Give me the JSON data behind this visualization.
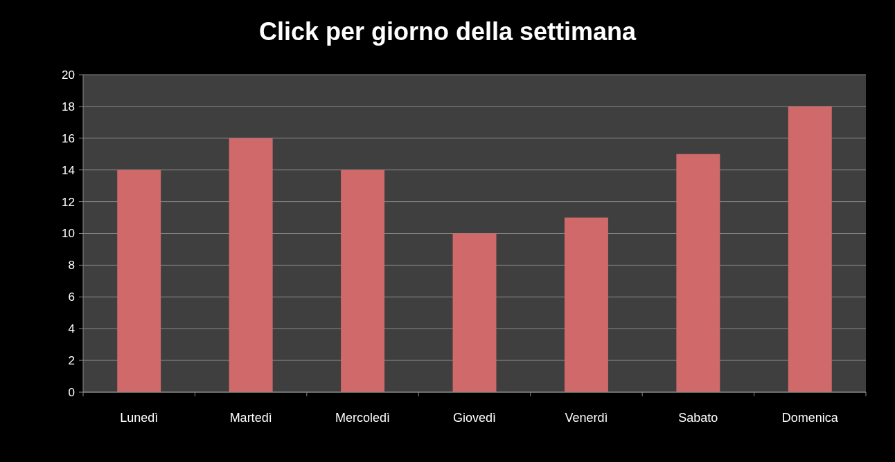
{
  "chart_data": {
    "type": "bar",
    "title": "Click per giorno della settimana",
    "categories": [
      "Lunedì",
      "Martedì",
      "Mercoledì",
      "Giovedì",
      "Venerdì",
      "Sabato",
      "Domenica"
    ],
    "values": [
      14,
      16,
      14,
      10,
      11,
      15,
      18
    ],
    "color": "#d06a6a",
    "ylim": [
      0,
      20
    ],
    "yticks": [
      0,
      2,
      4,
      6,
      8,
      10,
      12,
      14,
      16,
      18,
      20
    ],
    "grid": "y"
  }
}
